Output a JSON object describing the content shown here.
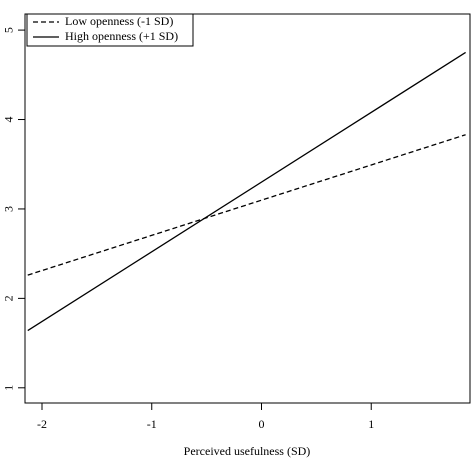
{
  "chart_data": {
    "type": "line",
    "xlabel": "Perceived usefulness (SD)",
    "x": [
      -2.13,
      1.86
    ],
    "series": [
      {
        "name": "Low openness (-1 SD)",
        "color": "#000000",
        "style": "dashed",
        "values": [
          2.26,
          3.83
        ]
      },
      {
        "name": "High openness (+1 SD)",
        "color": "#000000",
        "style": "solid",
        "values": [
          1.64,
          4.75
        ]
      }
    ],
    "xlim": [
      -2.155,
      1.9
    ],
    "ylim": [
      0.83,
      5.18
    ],
    "xticks": [
      -2,
      -1,
      0,
      1
    ],
    "yticks": [
      1,
      2,
      3,
      4,
      5
    ],
    "legend": "top-left"
  }
}
